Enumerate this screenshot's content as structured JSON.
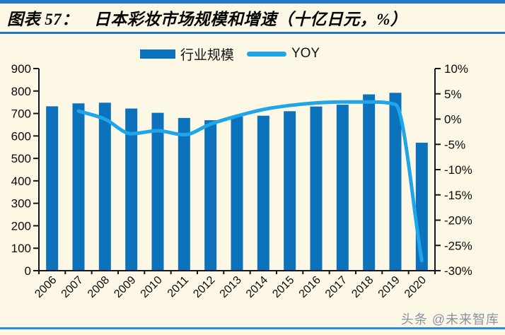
{
  "title": {
    "prefix": "图表 57：",
    "main": "日本彩妆市场规模和增速（十亿日元，%）"
  },
  "legend": {
    "items": [
      {
        "label": "行业规模",
        "swatch": "bar"
      },
      {
        "label": "YOY",
        "swatch": "line"
      }
    ]
  },
  "watermark": "头条 @未来智库",
  "colors": {
    "background": "#FDF7E6",
    "bar": "#0C72BC",
    "line": "#1FA6E8",
    "axis": "#15151E",
    "accent_top": "#2776C5",
    "accent_bottom": "#1E8FEF",
    "tick_label": "#0A0A0A",
    "watermark": "#8B9095"
  },
  "chart_data": {
    "type": "bar",
    "title": "日本彩妆市场规模和增速（十亿日元，%）",
    "categories": [
      "2006",
      "2007",
      "2008",
      "2009",
      "2010",
      "2011",
      "2012",
      "2013",
      "2014",
      "2015",
      "2016",
      "2017",
      "2018",
      "2019",
      "2020"
    ],
    "series": [
      {
        "name": "行业规模",
        "type": "bar",
        "axis": "left",
        "values": [
          732,
          745,
          748,
          722,
          703,
          680,
          670,
          686,
          690,
          710,
          731,
          739,
          785,
          792,
          570
        ]
      },
      {
        "name": "YOY",
        "type": "line",
        "axis": "right",
        "start_category": "2007",
        "values": [
          1.6,
          0.0,
          -2.9,
          -2.3,
          -3.1,
          -1.0,
          0.6,
          1.9,
          2.7,
          3.2,
          3.4,
          3.4,
          2.9,
          -28.0
        ]
      }
    ],
    "left_axis": {
      "min": 0,
      "max": 900,
      "step": 100,
      "labels_top_to_bottom": [
        "900",
        "800",
        "700",
        "600",
        "500",
        "400",
        "300",
        "200",
        "100",
        "0"
      ]
    },
    "right_axis": {
      "min": -30,
      "max": 10,
      "step": 5,
      "labels_top_to_bottom": [
        "10%",
        "5%",
        "0%",
        "-5%",
        "-10%",
        "-15%",
        "-20%",
        "-25%",
        "-30%"
      ]
    },
    "legend_position": "top",
    "grid": false
  }
}
